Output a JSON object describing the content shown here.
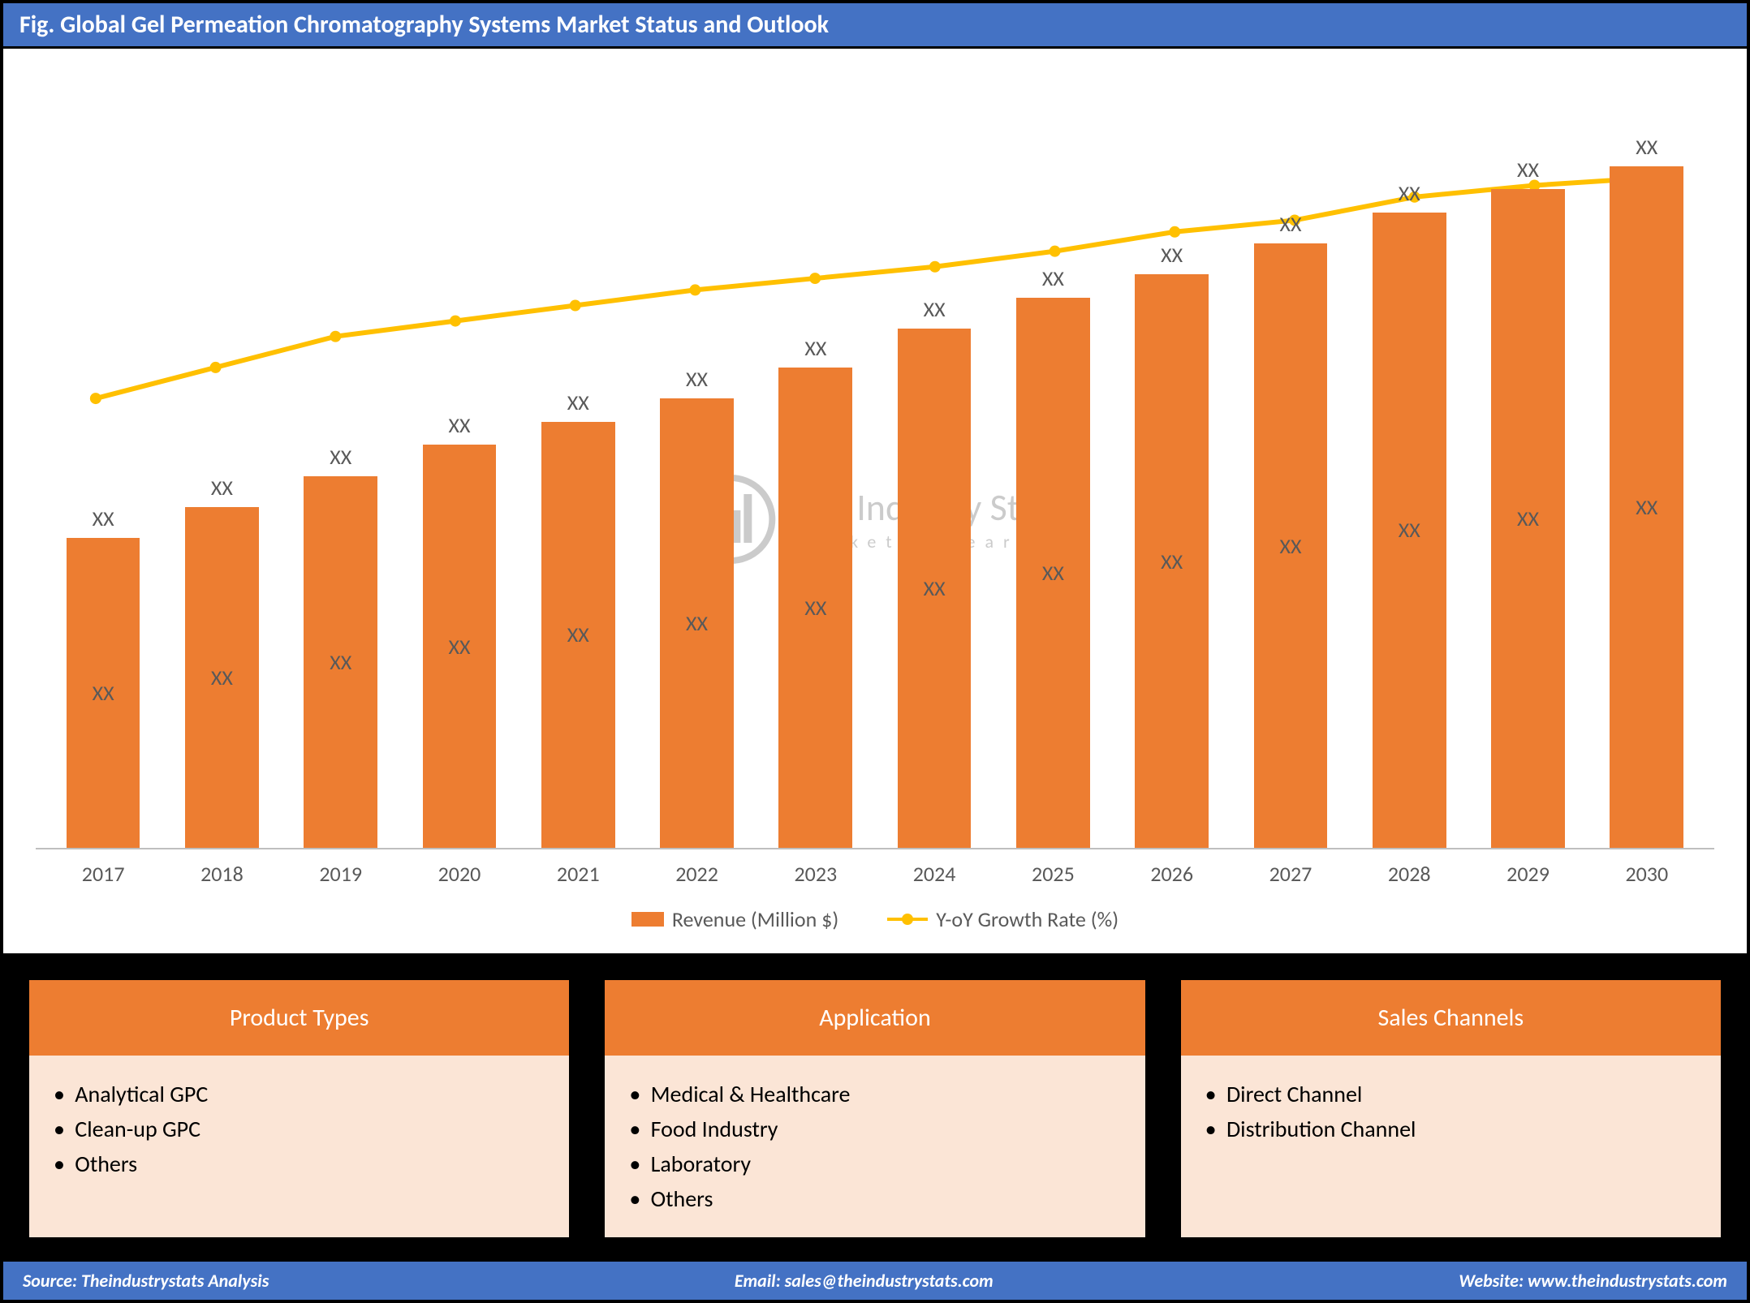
{
  "title": "Fig. Global Gel Permeation Chromatography Systems Market Status and Outlook",
  "title_bg": "#4472c4",
  "title_color": "#ffffff",
  "title_fontsize": 30,
  "chart": {
    "type": "bar+line",
    "background": "#ffffff",
    "xlabel_color": "#595959",
    "xlabel_fontsize": 26,
    "axis_line_color": "#bfbfbf",
    "categories": [
      "2017",
      "2018",
      "2019",
      "2020",
      "2021",
      "2022",
      "2023",
      "2024",
      "2025",
      "2026",
      "2027",
      "2028",
      "2029",
      "2030"
    ],
    "bar_series": {
      "name": "Revenue (Million $)",
      "color": "#ed7d31",
      "label_text": "XX",
      "label_color": "#595959",
      "label_fontsize": 26,
      "top_label_text": "XX",
      "top_label_color": "#595959",
      "top_label_fontsize": 26,
      "values": [
        40,
        44,
        48,
        52,
        55,
        58,
        62,
        67,
        71,
        74,
        78,
        82,
        85,
        88
      ]
    },
    "line_series": {
      "name": "Y-oY Growth Rate (%)",
      "color": "#ffc000",
      "marker_color": "#ffc000",
      "marker_size": 14,
      "line_width": 6,
      "values": [
        58,
        62,
        66,
        68,
        70,
        72,
        73.5,
        75,
        77,
        79.5,
        81,
        84,
        85.5,
        86.5
      ]
    },
    "legend_fontsize": 26,
    "legend_color": "#595959"
  },
  "watermark": {
    "line1": "The Industry Stats",
    "line2": "market research",
    "color": "#808080"
  },
  "cards_bg": "#000000",
  "card_header_bg": "#ed7d31",
  "card_header_color": "#ffffff",
  "card_header_fontsize": 30,
  "card_body_bg": "#fbe5d6",
  "card_body_color": "#000000",
  "card_body_fontsize": 28,
  "cards": [
    {
      "title": "Product Types",
      "items": [
        "Analytical GPC",
        "Clean-up GPC",
        "Others"
      ]
    },
    {
      "title": "Application",
      "items": [
        "Medical & Healthcare",
        "Food Industry",
        "Laboratory",
        "Others"
      ]
    },
    {
      "title": "Sales Channels",
      "items": [
        "Direct Channel",
        "Distribution Channel"
      ]
    }
  ],
  "footer": {
    "bg": "#4472c4",
    "color": "#ffffff",
    "fontsize": 22,
    "source_label": "Source: Theindustrystats Analysis",
    "email_label": "Email: sales@theindustrystats.com",
    "website_label": "Website: www.theindustrystats.com"
  }
}
